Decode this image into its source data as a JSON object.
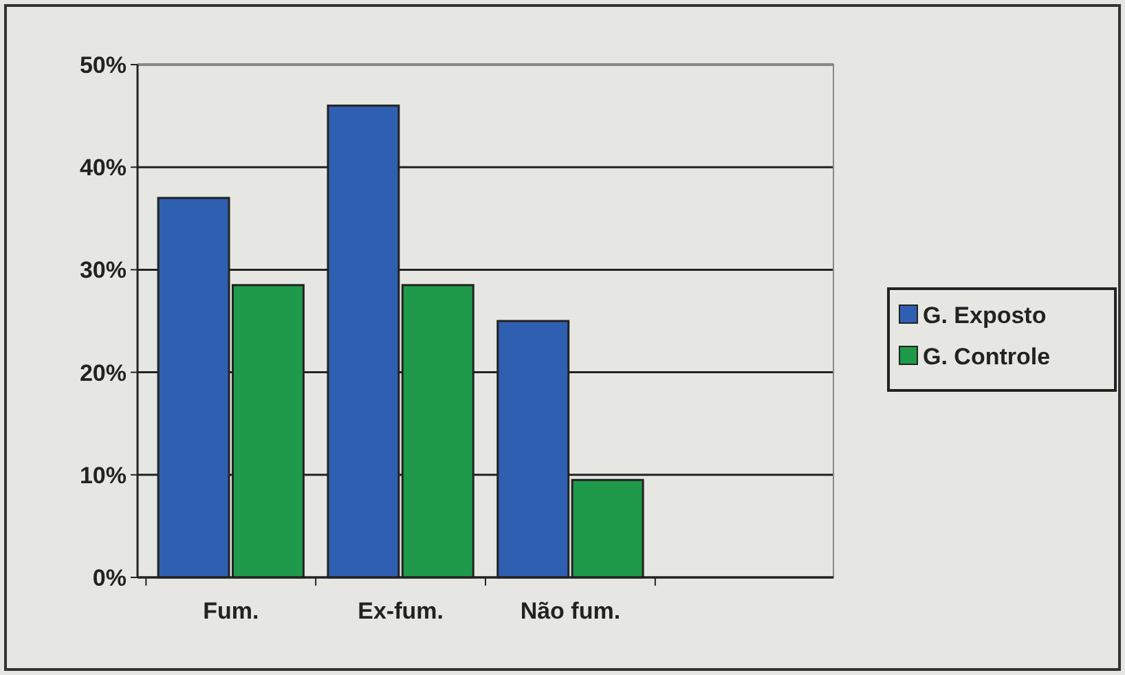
{
  "chart_data": {
    "type": "bar",
    "categories": [
      "Fum.",
      "Ex-fum.",
      "Não fum.",
      null
    ],
    "series": [
      {
        "name": "G. Exposto",
        "color": "#2f5fb0",
        "values": [
          37,
          46,
          25,
          null
        ]
      },
      {
        "name": "G. Controle",
        "color": "#1f9a4a",
        "values": [
          28.5,
          28.5,
          9.5,
          null
        ]
      }
    ],
    "ylim": [
      0,
      50
    ],
    "yticks": [
      {
        "value": 0,
        "label": "0%"
      },
      {
        "value": 10,
        "label": "10%"
      },
      {
        "value": 20,
        "label": "20%"
      },
      {
        "value": 30,
        "label": "30%"
      },
      {
        "value": 40,
        "label": "40%"
      },
      {
        "value": 50,
        "label": "50%"
      }
    ],
    "grid": "y",
    "legend": "right"
  }
}
